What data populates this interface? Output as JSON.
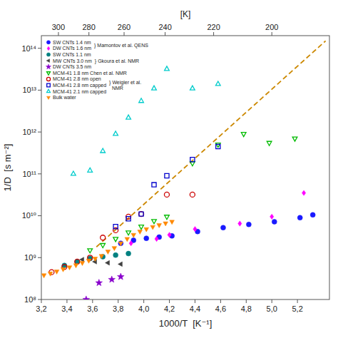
{
  "chart_data": {
    "type": "scatter",
    "xlabel": "1000/T  [K⁻¹]",
    "ylabel": "1/D  [s m⁻²]",
    "x2label": "[K]",
    "xlim": [
      3.2,
      5.45
    ],
    "ylim": [
      100000000.0,
      200000000000000.0
    ],
    "log": "y",
    "grid": false,
    "legend": "upper left",
    "xticks": [
      {
        "value": 3.2,
        "label": "3,2"
      },
      {
        "value": 3.4,
        "label": "3,4"
      },
      {
        "value": 3.6,
        "label": "3,6"
      },
      {
        "value": 3.8,
        "label": "3,8"
      },
      {
        "value": 4.0,
        "label": "4,0"
      },
      {
        "value": 4.2,
        "label": "4,2"
      },
      {
        "value": 4.4,
        "label": "4,4"
      },
      {
        "value": 4.6,
        "label": "4,6"
      },
      {
        "value": 4.8,
        "label": "4,8"
      },
      {
        "value": 5.0,
        "label": "5,0"
      },
      {
        "value": 5.2,
        "label": "5,2"
      }
    ],
    "yticks": [
      {
        "value": 100000000.0,
        "label": "10⁸"
      },
      {
        "value": 1000000000.0,
        "label": "10⁹"
      },
      {
        "value": 10000000000.0,
        "label": "10¹⁰"
      },
      {
        "value": 100000000000.0,
        "label": "10¹¹"
      },
      {
        "value": 1000000000000.0,
        "label": "10¹²"
      },
      {
        "value": 10000000000000.0,
        "label": "10¹³"
      },
      {
        "value": 100000000000000.0,
        "label": "10¹⁴"
      }
    ],
    "x2lim": [
      3.2,
      5.45
    ],
    "x2ticks": [
      {
        "value": 3.3333333333333335,
        "label": "300"
      },
      {
        "value": 3.5714285714285716,
        "label": "280"
      },
      {
        "value": 3.8461538461538463,
        "label": "260"
      },
      {
        "value": 4.166666666666667,
        "label": "240"
      },
      {
        "value": 4.545454545454546,
        "label": "220"
      },
      {
        "value": 5.0,
        "label": "200"
      }
    ],
    "series": [
      {
        "name": "SW CNTs 1.4 nm",
        "color": "#1a1aff",
        "marker": "circle",
        "x": [
          3.82,
          3.92,
          4.02,
          4.12,
          4.22,
          4.42,
          4.62,
          4.82,
          5.02,
          5.22,
          5.32
        ],
        "values": [
          2200000000.0,
          2600000000.0,
          2900000000.0,
          3100000000.0,
          3300000000.0,
          4200000000.0,
          5200000000.0,
          6200000000.0,
          7200000000.0,
          9000000000.0,
          10500000000.0
        ]
      },
      {
        "name": "DW CNTs 1.6 nm",
        "color": "#ff00ff",
        "marker": "diamond",
        "x": [
          3.9,
          4.1,
          4.2,
          4.4,
          4.75,
          5.0,
          5.25
        ],
        "values": [
          2200000000.0,
          2800000000.0,
          3500000000.0,
          4800000000.0,
          6500000000.0,
          9500000000.0,
          35000000000.0
        ]
      },
      {
        "name": "SW CNTs 1.1 nm",
        "color": "#008080",
        "marker": "circle",
        "x": [
          3.38,
          3.48,
          3.58,
          3.68,
          3.78,
          3.88
        ],
        "values": [
          650000000.0,
          800000000.0,
          950000000.0,
          1050000000.0,
          1150000000.0,
          1250000000.0
        ]
      },
      {
        "name": "MW CNTs 3.0 nm",
        "color": "#404040",
        "marker": "triangle-left",
        "x": [
          3.52,
          3.62,
          3.72,
          3.82
        ],
        "values": [
          900000000.0,
          800000000.0,
          750000000.0,
          700000000.0
        ]
      },
      {
        "name": "DW CNTs 3.5 nm",
        "color": "#8800cc",
        "marker": "star",
        "x": [
          3.55,
          3.65,
          3.75,
          3.82
        ],
        "values": [
          100000000.0,
          250000000.0,
          300000000.0,
          350000000.0
        ]
      },
      {
        "name": "MCM-41 1.8 nm Chen et al. NMR",
        "color": "#00bb00",
        "marker": "triangle-down-open",
        "x": [
          3.58,
          3.68,
          3.78,
          3.88,
          3.98,
          4.08,
          4.18,
          4.38,
          4.58,
          4.78,
          4.98,
          5.18
        ],
        "values": [
          1500000000.0,
          2000000000.0,
          2800000000.0,
          4000000000.0,
          5500000000.0,
          7500000000.0,
          9500000000.0,
          180000000000.0,
          500000000000.0,
          900000000000.0,
          550000000000.0,
          700000000000.0
        ]
      },
      {
        "name": "MCM-41 2.8 nm open",
        "color": "#cc0000",
        "marker": "circle-open",
        "x": [
          3.28,
          3.38,
          3.48,
          3.58,
          3.68,
          3.78,
          3.88,
          3.98,
          4.18,
          4.38
        ],
        "values": [
          450000000.0,
          600000000.0,
          800000000.0,
          1000000000.0,
          3000000000.0,
          4500000000.0,
          9500000000.0,
          11000000000.0,
          32000000000.0,
          32000000000.0
        ]
      },
      {
        "name": "MCM-41 2.8 nm capped",
        "color": "#0000cc",
        "marker": "square-open",
        "x": [
          3.78,
          3.88,
          3.98,
          4.08,
          4.18,
          4.38,
          4.58
        ],
        "values": [
          5500000000.0,
          8500000000.0,
          11000000000.0,
          55000000000.0,
          90000000000.0,
          220000000000.0,
          450000000000.0
        ]
      },
      {
        "name": "MCM-41 2.1 nm capped",
        "color": "#00cccc",
        "marker": "triangle-up-open",
        "x": [
          3.45,
          3.58,
          3.68,
          3.78,
          3.88,
          3.98,
          4.08,
          4.18,
          4.38,
          4.58
        ],
        "values": [
          100000000000.0,
          120000000000.0,
          350000000000.0,
          900000000000.0,
          2200000000000.0,
          5500000000000.0,
          11000000000000.0,
          32000000000000.0,
          11000000000000.0,
          14000000000000.0
        ]
      },
      {
        "name": "Bulk water",
        "color": "#ff8800",
        "marker": "triangle-down",
        "x": [
          3.22,
          3.27,
          3.32,
          3.37,
          3.42,
          3.47,
          3.52,
          3.57,
          3.62,
          3.67,
          3.72,
          3.77,
          3.82,
          3.87,
          3.92,
          3.97,
          4.02,
          4.07,
          4.12,
          4.17,
          4.22
        ],
        "values": [
          380000000.0,
          420000000.0,
          470000000.0,
          530000000.0,
          590000000.0,
          660000000.0,
          750000000.0,
          850000000.0,
          950000000.0,
          1100000000.0,
          1400000000.0,
          1700000000.0,
          2200000000.0,
          2800000000.0,
          3500000000.0,
          4200000000.0,
          4800000000.0,
          5400000000.0,
          6000000000.0,
          6600000000.0,
          7200000000.0
        ]
      },
      {
        "type": "line",
        "line_style": "dashed",
        "color": "#cc8800",
        "x": [
          3.63,
          5.42
        ],
        "values": [
          1800000000.0,
          150000000000000.0
        ]
      }
    ],
    "annotations": [
      {
        "text": "} Mamontov et al. QENS"
      },
      {
        "text": "} Gkoura et al. NMR"
      },
      {
        "text": "} Weigler et al.\n  NMR"
      }
    ]
  }
}
